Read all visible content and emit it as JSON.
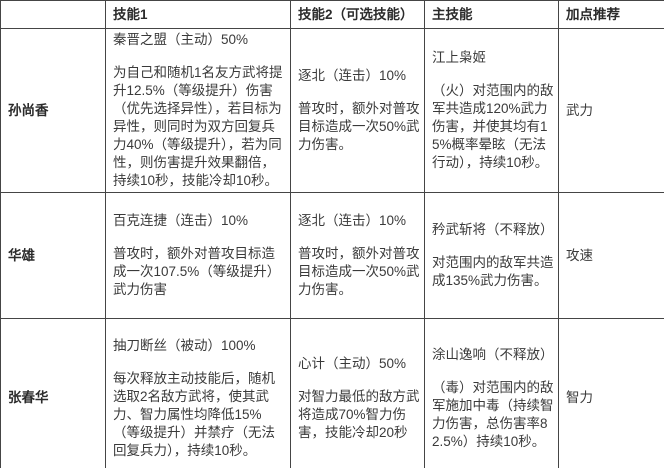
{
  "colors": {
    "border": "#454545",
    "text": "#3a3a3a",
    "background": "#ffffff"
  },
  "table": {
    "headers": {
      "name": "",
      "skill1": "技能1",
      "skill2": "技能2（可选技能）",
      "main": "主技能",
      "recommend": "加点推荐"
    },
    "rows": [
      {
        "name": "孙尚香",
        "skill1_title": "秦晋之盟（主动）50%",
        "skill1_desc": "为自己和随机1名友方武将提升12.5%（等级提升）伤害（优先选择异性），若目标为异性，则同时为双方回复兵力40%（等级提升），若为同性，则伤害提升效果翻倍，持续10秒，技能冷却10秒。",
        "skill2_title": "逐北（连击）10%",
        "skill2_desc": "普攻时，额外对普攻目标造成一次50%武力伤害。",
        "main_title": "江上枭姬",
        "main_desc": "（火）对范围内的敌军共造成120%武力伤害，并使其均有15%概率晕眩（无法行动），持续10秒。",
        "recommend": "武力"
      },
      {
        "name": "华雄",
        "skill1_title": "百克连捷（连击）10%",
        "skill1_desc": "普攻时，额外对普攻目标造成一次107.5%（等级提升）武力伤害",
        "skill2_title": "逐北（连击）10%",
        "skill2_desc": "普攻时，额外对普攻目标造成一次50%武力伤害。",
        "main_title": "矜武斩将（不释放）",
        "main_desc": "对范围内的敌军共造成135%武力伤害。",
        "recommend": "攻速"
      },
      {
        "name": "张春华",
        "skill1_title": "抽刀断丝（被动）100%",
        "skill1_desc": "每次释放主动技能后，随机选取2名敌方武将，使其武力、智力属性均降低15%（等级提升）并禁疗（无法回复兵力），持续10秒。",
        "skill2_title": "心计（主动）50%",
        "skill2_desc": "对智力最低的敌方武将造成70%智力伤害，技能冷却20秒",
        "main_title": "涂山逸响（不释放）",
        "main_desc": "（毒）对范围内的敌军施加中毒（持续智力伤害，总伤害率82.5%）持续10秒。",
        "recommend": "智力"
      }
    ]
  }
}
